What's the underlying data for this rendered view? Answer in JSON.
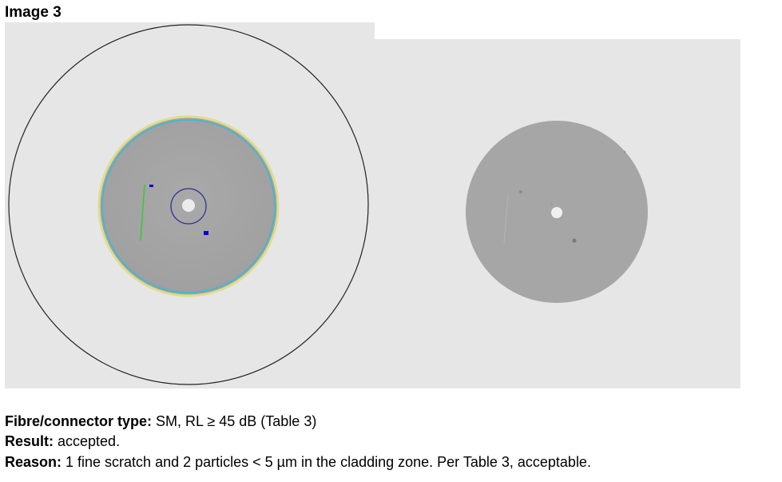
{
  "heading": "Image 3",
  "images": {
    "left": {
      "description_icon": "annotated-fibre-endface-icon",
      "markers": {
        "scratch_color": "#33cc33",
        "particle_color": "#0000dd",
        "core_ring_color": "#333399",
        "cladding_ring_color": "#33bbdd",
        "contact_ring_color": "#e0dc8a",
        "outer_ring_color": "#222222"
      }
    },
    "right": {
      "description_icon": "raw-fibre-endface-icon"
    },
    "background_color": "#e6e6e6",
    "endface_color": "#a6a6a6"
  },
  "caption": {
    "type_label": "Fibre/connector type:",
    "type_value": " SM,  RL ≥ 45 dB (Table 3)",
    "result_label": "Result:",
    "result_value": " accepted.",
    "reason_label": "Reason:",
    "reason_value": " 1 fine scratch and 2 particles < 5 µm in the cladding zone. Per Table 3, acceptable."
  }
}
